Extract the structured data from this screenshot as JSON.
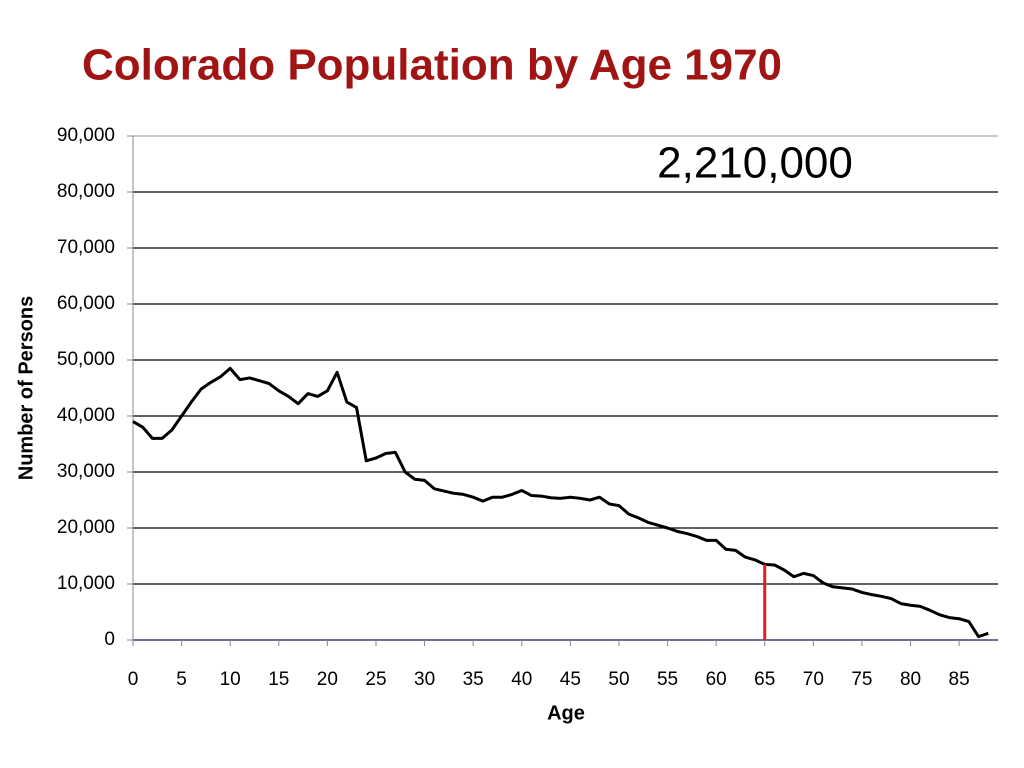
{
  "chart_data": {
    "type": "line",
    "title": "Colorado Population by Age 1970",
    "annotation": "2,210,000",
    "xlabel": "Age",
    "ylabel": "Number of Persons",
    "x": [
      0,
      1,
      2,
      3,
      4,
      5,
      6,
      7,
      8,
      9,
      10,
      11,
      12,
      13,
      14,
      15,
      16,
      17,
      18,
      19,
      20,
      21,
      22,
      23,
      24,
      25,
      26,
      27,
      28,
      29,
      30,
      31,
      32,
      33,
      34,
      35,
      36,
      37,
      38,
      39,
      40,
      41,
      42,
      43,
      44,
      45,
      46,
      47,
      48,
      49,
      50,
      51,
      52,
      53,
      54,
      55,
      56,
      57,
      58,
      59,
      60,
      61,
      62,
      63,
      64,
      65,
      66,
      67,
      68,
      69,
      70,
      71,
      72,
      73,
      74,
      75,
      76,
      77,
      78,
      79,
      80,
      81,
      82,
      83,
      84,
      85,
      86,
      87,
      88
    ],
    "series": [
      {
        "color": "#000000",
        "values": [
          39000,
          38000,
          36000,
          36000,
          37500,
          40000,
          42500,
          44800,
          46000,
          47000,
          48500,
          46500,
          46800,
          46300,
          45800,
          44500,
          43500,
          42200,
          44000,
          43500,
          44500,
          47800,
          42500,
          41500,
          32000,
          32500,
          33300,
          33500,
          30000,
          28700,
          28500,
          27000,
          26600,
          26200,
          26000,
          25500,
          24800,
          25500,
          25500,
          26000,
          26700,
          25800,
          25700,
          25400,
          25300,
          25500,
          25300,
          25000,
          25500,
          24300,
          24000,
          22500,
          21800,
          21000,
          20500,
          20000,
          19400,
          19000,
          18500,
          17800,
          17800,
          16200,
          16000,
          14800,
          14300,
          13500,
          13400,
          12500,
          11300,
          11900,
          11500,
          10200,
          9500,
          9300,
          9100,
          8500,
          8100,
          7800,
          7400,
          6500,
          6200,
          6000,
          5300,
          4500,
          4000,
          3800,
          3300,
          600,
          1200
        ]
      }
    ],
    "marker_line": {
      "x": 65,
      "color": "#e0201f"
    },
    "xlim": [
      0,
      89
    ],
    "xticks": [
      0,
      5,
      10,
      15,
      20,
      25,
      30,
      35,
      40,
      45,
      50,
      55,
      60,
      65,
      70,
      75,
      80,
      85
    ],
    "ylim": [
      0,
      90000
    ],
    "yticks": [
      0,
      {
        "value": 10000,
        "label": "10,000"
      },
      {
        "value": 20000,
        "label": "20,000"
      },
      {
        "value": 30000,
        "label": "30,000"
      },
      {
        "value": 40000,
        "label": "40,000"
      },
      {
        "value": 50000,
        "label": "50,000"
      },
      {
        "value": 60000,
        "label": "60,000"
      },
      {
        "value": 70000,
        "label": "70,000"
      },
      {
        "value": 80000,
        "label": "80,000"
      },
      {
        "value": 90000,
        "label": "90,000"
      }
    ],
    "grid": true
  }
}
